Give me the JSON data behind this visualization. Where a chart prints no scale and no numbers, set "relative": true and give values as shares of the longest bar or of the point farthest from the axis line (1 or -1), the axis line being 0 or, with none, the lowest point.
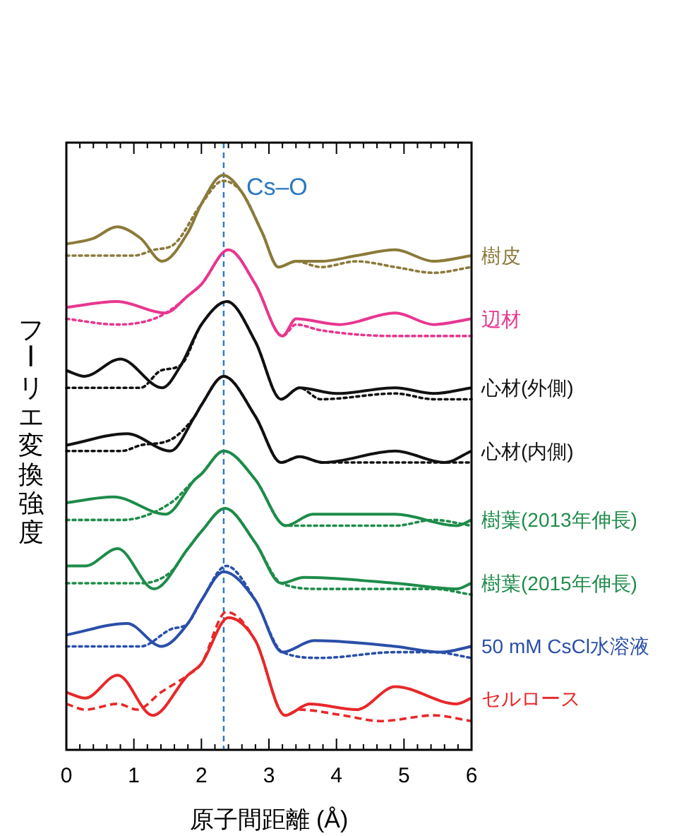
{
  "chart_data": {
    "type": "line",
    "relative": true,
    "xlabel": "原子間距離 (Å)",
    "ylabel": "フーリエ変換強度",
    "xlim": [
      0,
      6
    ],
    "xticks": [
      0,
      1,
      2,
      3,
      4,
      5,
      6
    ],
    "tick_labels": "x",
    "ref_lines": [
      {
        "axis": "x",
        "value": 2.33,
        "label": "Cs–O",
        "color": "#2a78c0",
        "line_style": "dashed"
      }
    ],
    "series": [
      {
        "name": "樹皮",
        "color": "#8b7a3a",
        "line_style": "solid",
        "x": [
          0,
          0.4,
          0.75,
          1.1,
          1.42,
          1.8,
          2.0,
          2.32,
          2.6,
          2.9,
          3.14,
          3.4,
          3.77,
          4.3,
          4.87,
          5.44,
          6.0
        ],
        "values": [
          0.88,
          0.89,
          0.91,
          0.89,
          0.85,
          0.9,
          0.95,
          1.0,
          0.97,
          0.9,
          0.84,
          0.85,
          0.85,
          0.86,
          0.87,
          0.85,
          0.86
        ]
      },
      {
        "color": "#8b7a3a",
        "line_style": "dotted",
        "x": [
          0,
          0.5,
          1.0,
          1.3,
          1.6,
          2.0,
          2.32,
          2.6,
          2.9,
          3.14,
          3.4,
          3.77,
          4.3,
          4.87,
          5.44,
          6.0
        ],
        "values": [
          0.86,
          0.86,
          0.86,
          0.87,
          0.88,
          0.95,
          0.99,
          0.97,
          0.9,
          0.84,
          0.85,
          0.84,
          0.85,
          0.84,
          0.83,
          0.84
        ]
      },
      {
        "name": "辺材",
        "color": "#e8368f",
        "line_style": "solid",
        "x": [
          0,
          0.75,
          1.46,
          1.8,
          2.0,
          2.4,
          2.8,
          3.2,
          3.4,
          4.04,
          4.87,
          5.44,
          6.0
        ],
        "values": [
          0.77,
          0.78,
          0.76,
          0.79,
          0.81,
          0.87,
          0.81,
          0.72,
          0.75,
          0.74,
          0.76,
          0.74,
          0.75
        ]
      },
      {
        "color": "#e8368f",
        "line_style": "dotted",
        "x": [
          0,
          0.75,
          1.3,
          1.6,
          1.8,
          2.0,
          2.4,
          2.8,
          3.2,
          3.4,
          3.77,
          4.87,
          6.0
        ],
        "values": [
          0.75,
          0.74,
          0.75,
          0.77,
          0.79,
          0.81,
          0.87,
          0.81,
          0.72,
          0.74,
          0.73,
          0.72,
          0.72
        ]
      },
      {
        "name": "心材(外側)",
        "color": "#111111",
        "line_style": "solid",
        "x": [
          0,
          0.27,
          0.8,
          1.42,
          1.7,
          2.0,
          2.38,
          2.8,
          3.18,
          3.45,
          4.0,
          4.87,
          5.44,
          6.0
        ],
        "values": [
          0.66,
          0.65,
          0.68,
          0.63,
          0.67,
          0.74,
          0.78,
          0.71,
          0.61,
          0.63,
          0.62,
          0.63,
          0.62,
          0.63
        ]
      },
      {
        "color": "#111111",
        "line_style": "dotted",
        "x": [
          0,
          0.82,
          1.1,
          1.4,
          1.7,
          2.0,
          2.38,
          2.8,
          3.18,
          3.45,
          3.77,
          4.87,
          5.44,
          6.0
        ],
        "values": [
          0.63,
          0.63,
          0.63,
          0.66,
          0.67,
          0.74,
          0.78,
          0.71,
          0.61,
          0.63,
          0.61,
          0.62,
          0.61,
          0.61
        ]
      },
      {
        "name": "心材(内側)",
        "color": "#111111",
        "line_style": "solid",
        "x": [
          0,
          0.9,
          1.54,
          1.9,
          2.0,
          2.33,
          2.8,
          3.18,
          3.45,
          3.8,
          4.87,
          5.6,
          6.0
        ],
        "values": [
          0.53,
          0.55,
          0.52,
          0.58,
          0.6,
          0.65,
          0.58,
          0.5,
          0.51,
          0.5,
          0.52,
          0.5,
          0.52
        ]
      },
      {
        "color": "#111111",
        "line_style": "dotted",
        "x": [
          0,
          0.82,
          1.1,
          1.55,
          1.9,
          2.0,
          2.33,
          2.8,
          3.18,
          3.45,
          3.8,
          4.87,
          5.44,
          6.0
        ],
        "values": [
          0.52,
          0.52,
          0.53,
          0.54,
          0.58,
          0.6,
          0.65,
          0.58,
          0.5,
          0.51,
          0.5,
          0.5,
          0.5,
          0.5
        ]
      },
      {
        "name": "樹葉(2013年伸長)",
        "color": "#1e8c4a",
        "line_style": "solid",
        "x": [
          0,
          0.7,
          1.47,
          1.9,
          2.0,
          2.33,
          2.8,
          3.25,
          3.65,
          4.87,
          5.78,
          6.0
        ],
        "values": [
          0.43,
          0.44,
          0.41,
          0.47,
          0.48,
          0.52,
          0.47,
          0.39,
          0.41,
          0.41,
          0.39,
          0.4
        ]
      },
      {
        "color": "#1e8c4a",
        "line_style": "dotted",
        "x": [
          0,
          0.82,
          1.55,
          1.9,
          2.0,
          2.33,
          2.8,
          3.25,
          3.77,
          4.87,
          5.44,
          6.0
        ],
        "values": [
          0.4,
          0.4,
          0.43,
          0.47,
          0.48,
          0.52,
          0.47,
          0.39,
          0.39,
          0.39,
          0.4,
          0.39
        ]
      },
      {
        "name": "樹葉(2015年伸長)",
        "color": "#1e8c4a",
        "line_style": "solid",
        "x": [
          0,
          0.28,
          0.76,
          1.3,
          1.8,
          2.0,
          2.35,
          2.8,
          3.18,
          3.52,
          4.87,
          5.78,
          6.0
        ],
        "values": [
          0.32,
          0.32,
          0.35,
          0.28,
          0.35,
          0.38,
          0.42,
          0.36,
          0.29,
          0.3,
          0.29,
          0.28,
          0.29
        ]
      },
      {
        "color": "#1e8c4a",
        "line_style": "dotted",
        "x": [
          0,
          0.7,
          1.1,
          1.55,
          1.8,
          2.0,
          2.35,
          2.8,
          3.18,
          3.77,
          4.87,
          5.44,
          6.0
        ],
        "values": [
          0.29,
          0.29,
          0.29,
          0.31,
          0.35,
          0.38,
          0.42,
          0.36,
          0.29,
          0.28,
          0.28,
          0.28,
          0.27
        ]
      },
      {
        "name": "50 mM CsCl水溶液",
        "color": "#2a4fa8",
        "line_style": "solid",
        "x": [
          0,
          0.9,
          1.41,
          1.8,
          2.0,
          2.33,
          2.8,
          3.2,
          3.67,
          4.87,
          5.55,
          6.0
        ],
        "values": [
          0.2,
          0.22,
          0.18,
          0.22,
          0.26,
          0.31,
          0.26,
          0.17,
          0.19,
          0.18,
          0.17,
          0.18
        ]
      },
      {
        "color": "#2a4fa8",
        "line_style": "dotted",
        "x": [
          0,
          0.7,
          1.1,
          1.55,
          1.8,
          2.0,
          2.37,
          2.8,
          3.2,
          3.77,
          4.87,
          5.44,
          6.0
        ],
        "values": [
          0.18,
          0.18,
          0.18,
          0.21,
          0.22,
          0.26,
          0.32,
          0.26,
          0.17,
          0.16,
          0.17,
          0.17,
          0.16
        ]
      },
      {
        "name": "セルロース",
        "color": "#e8282a",
        "line_style": "solid",
        "x": [
          0,
          0.28,
          0.76,
          1.28,
          1.8,
          2.0,
          2.4,
          2.8,
          3.24,
          3.6,
          4.3,
          4.87,
          5.78,
          6.0
        ],
        "values": [
          0.1,
          0.09,
          0.13,
          0.06,
          0.13,
          0.15,
          0.23,
          0.19,
          0.06,
          0.08,
          0.07,
          0.11,
          0.08,
          0.09
        ]
      },
      {
        "color": "#e8282a",
        "line_style": "dashed",
        "x": [
          0,
          0.28,
          0.76,
          1.05,
          1.4,
          1.8,
          2.0,
          2.37,
          2.8,
          3.24,
          3.45,
          4.1,
          4.65,
          5.44,
          6.0
        ],
        "values": [
          0.08,
          0.07,
          0.08,
          0.07,
          0.1,
          0.13,
          0.15,
          0.24,
          0.19,
          0.06,
          0.07,
          0.06,
          0.05,
          0.06,
          0.05
        ]
      }
    ]
  }
}
